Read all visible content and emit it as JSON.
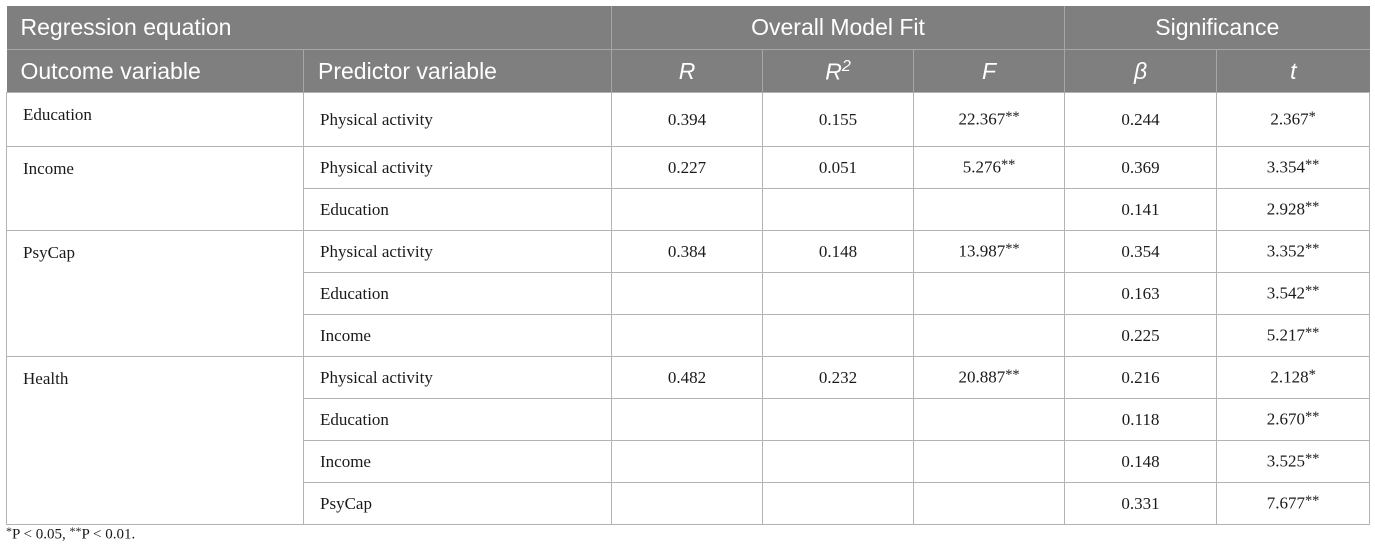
{
  "header": {
    "groups": {
      "regression_equation": "Regression equation",
      "overall_model_fit": "Overall Model Fit",
      "significance": "Significance"
    },
    "columns": {
      "outcome": "Outcome variable",
      "predictor": "Predictor variable",
      "r": "R",
      "r2_base": "R",
      "r2_sup": "2",
      "f": "F",
      "beta": "β",
      "t": "t"
    }
  },
  "rows": [
    {
      "outcome": "Education",
      "predictor": "Physical activity",
      "r": "0.394",
      "r2": "0.155",
      "f": "22.367",
      "f_stars": "**",
      "beta": "0.244",
      "t": "2.367",
      "t_stars": "*"
    },
    {
      "outcome": "Income",
      "predictor": "Physical activity",
      "r": "0.227",
      "r2": "0.051",
      "f": "5.276",
      "f_stars": "**",
      "beta": "0.369",
      "t": "3.354",
      "t_stars": "**"
    },
    {
      "outcome": "",
      "predictor": "Education",
      "r": "",
      "r2": "",
      "f": "",
      "f_stars": "",
      "beta": "0.141",
      "t": "2.928",
      "t_stars": "**"
    },
    {
      "outcome": "PsyCap",
      "predictor": "Physical activity",
      "r": "0.384",
      "r2": "0.148",
      "f": "13.987",
      "f_stars": "**",
      "beta": "0.354",
      "t": "3.352",
      "t_stars": "**"
    },
    {
      "outcome": "",
      "predictor": "Education",
      "r": "",
      "r2": "",
      "f": "",
      "f_stars": "",
      "beta": "0.163",
      "t": "3.542",
      "t_stars": "**"
    },
    {
      "outcome": "",
      "predictor": "Income",
      "r": "",
      "r2": "",
      "f": "",
      "f_stars": "",
      "beta": "0.225",
      "t": "5.217",
      "t_stars": "**"
    },
    {
      "outcome": "Health",
      "predictor": "Physical activity",
      "r": "0.482",
      "r2": "0.232",
      "f": "20.887",
      "f_stars": "**",
      "beta": "0.216",
      "t": "2.128",
      "t_stars": "*"
    },
    {
      "outcome": "",
      "predictor": "Education",
      "r": "",
      "r2": "",
      "f": "",
      "f_stars": "",
      "beta": "0.118",
      "t": "2.670",
      "t_stars": "**"
    },
    {
      "outcome": "",
      "predictor": "Income",
      "r": "",
      "r2": "",
      "f": "",
      "f_stars": "",
      "beta": "0.148",
      "t": "3.525",
      "t_stars": "**"
    },
    {
      "outcome": "",
      "predictor": "PsyCap",
      "r": "",
      "r2": "",
      "f": "",
      "f_stars": "",
      "beta": "0.331",
      "t": "7.677",
      "t_stars": "**"
    }
  ],
  "footnote": {
    "p1_stars": "*",
    "p1_text": "P < 0.05, ",
    "p2_stars": "**",
    "p2_text": "P < 0.01."
  },
  "colors": {
    "header_bg": "#7f7f7f",
    "header_text": "#ffffff",
    "grid": "#b3b3b3"
  }
}
